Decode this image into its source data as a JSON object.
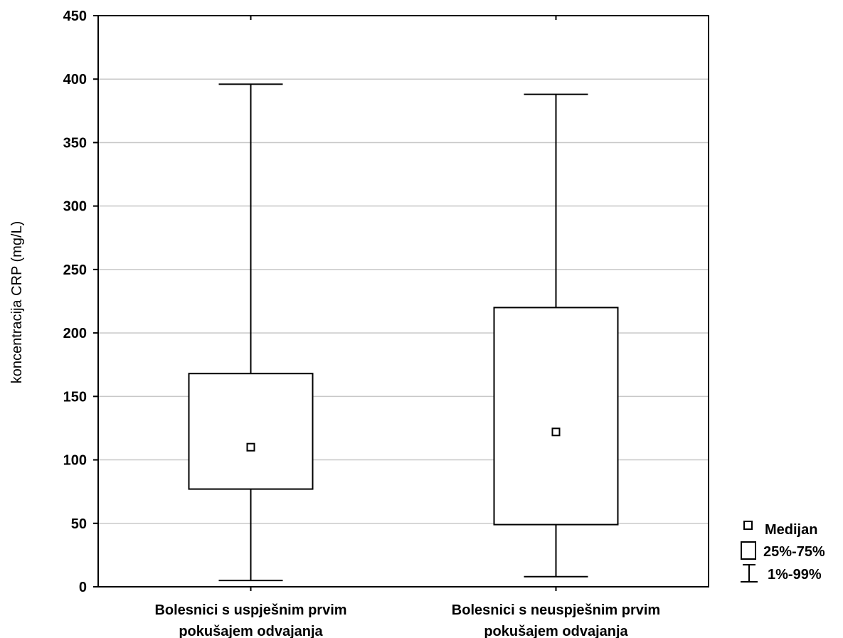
{
  "chart_data": {
    "type": "box",
    "ylabel": "koncentracija CRP (mg/L)",
    "ylim": [
      0,
      450
    ],
    "yticks": [
      0,
      50,
      100,
      150,
      200,
      250,
      300,
      350,
      400,
      450
    ],
    "grid": true,
    "categories": [
      [
        "Bolesnici s uspješnim prvim",
        "pokušajem odvajanja"
      ],
      [
        "Bolesnici s neuspješnim prvim",
        "pokušajem odvajanja"
      ]
    ],
    "boxes": [
      {
        "median": 110,
        "q1": 77,
        "q3": 168,
        "p1": 5,
        "p99": 396
      },
      {
        "median": 122,
        "q1": 49,
        "q3": 220,
        "p1": 8,
        "p99": 388
      }
    ],
    "legend": {
      "placement": "bottom-right",
      "items": [
        {
          "symbol": "median-square",
          "label": "Medijan"
        },
        {
          "symbol": "box",
          "label": "25%-75%"
        },
        {
          "symbol": "whisker",
          "label": "1%-99%"
        }
      ]
    },
    "colors": {
      "grid": "#c8c8c8",
      "line": "#000000",
      "fill": "#ffffff"
    }
  }
}
